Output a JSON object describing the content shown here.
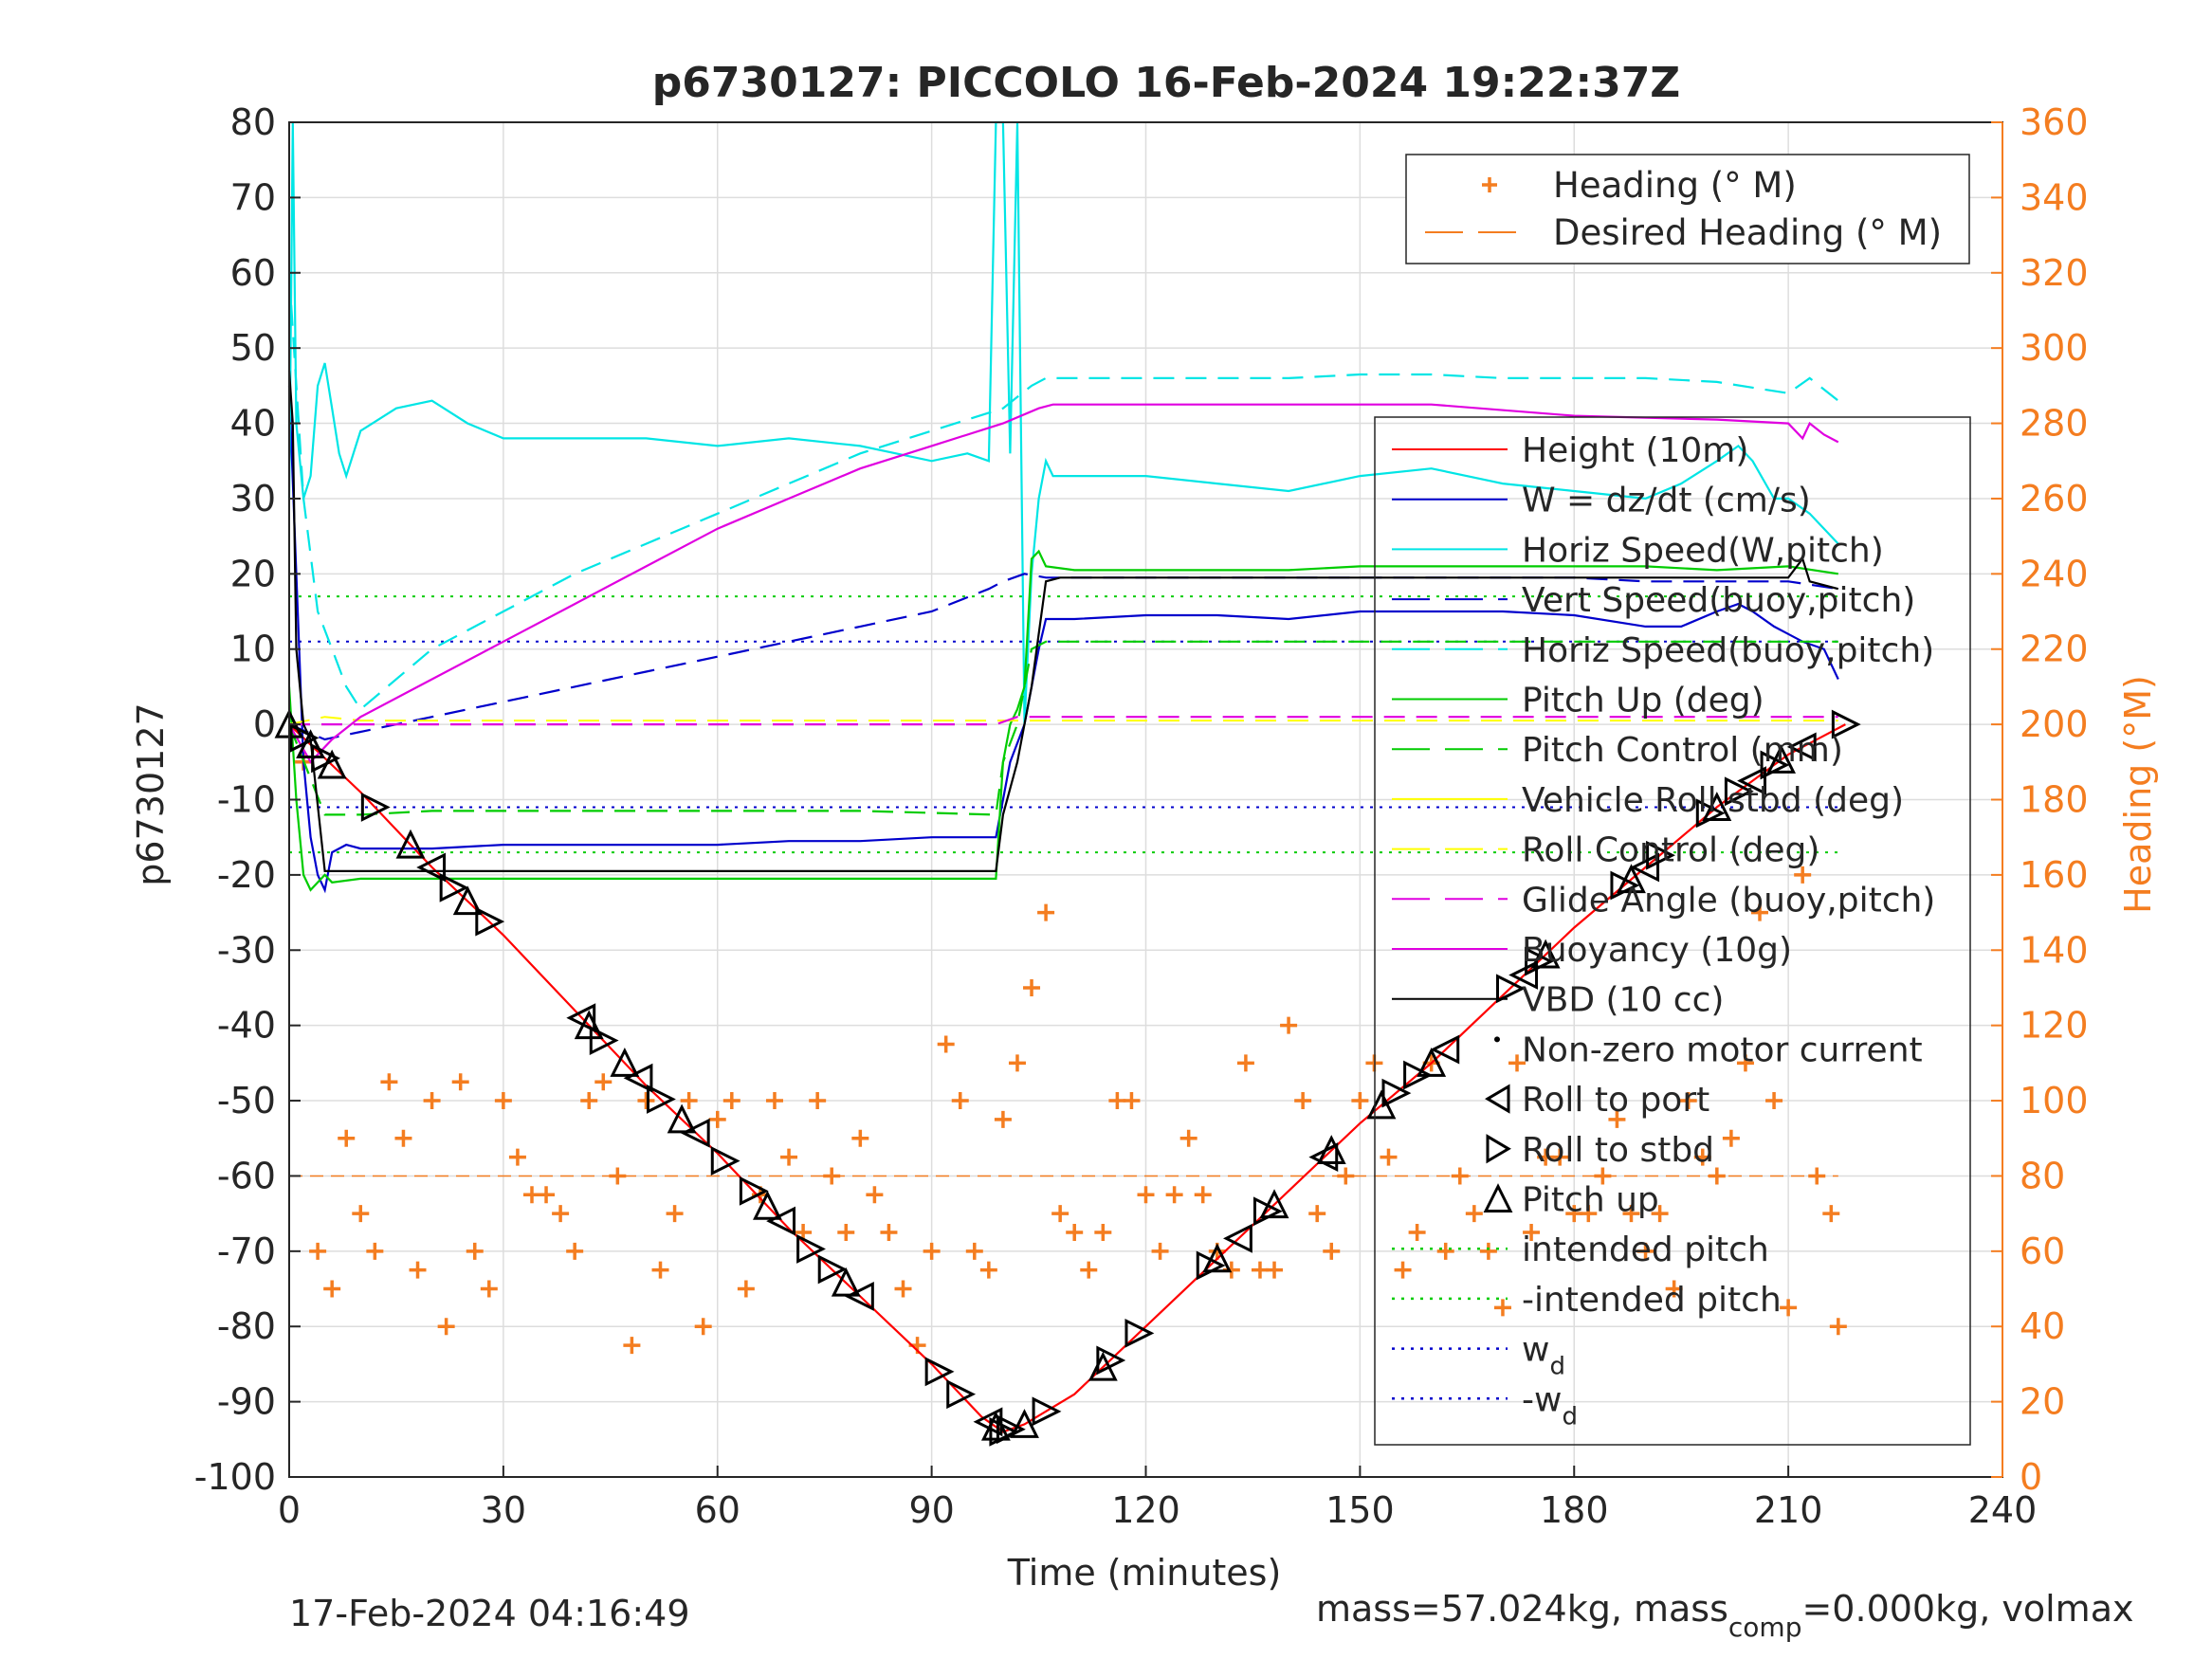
{
  "chart_data": {
    "type": "line",
    "title": "p6730127: PICCOLO 16-Feb-2024 19:22:37Z",
    "xlabel": "Time (minutes)",
    "ylabel_left": "p6730127",
    "ylabel_right": "Heading (°M)",
    "xlim": [
      0,
      240
    ],
    "ylim_left": [
      -100,
      80
    ],
    "ylim_right": [
      0,
      360
    ],
    "xticks": [
      0,
      30,
      60,
      90,
      120,
      150,
      180,
      210,
      240
    ],
    "yticks_left": [
      -100,
      -90,
      -80,
      -70,
      -60,
      -50,
      -40,
      -30,
      -20,
      -10,
      0,
      10,
      20,
      30,
      40,
      50,
      60,
      70,
      80
    ],
    "yticks_right": [
      0,
      20,
      40,
      60,
      80,
      100,
      120,
      140,
      160,
      180,
      200,
      220,
      240,
      260,
      280,
      300,
      320,
      340,
      360
    ],
    "grid": true,
    "footer_left": "17-Feb-2024 04:16:49",
    "footer_right_prefix": "mass=57.024kg, mass",
    "footer_right_sub": "comp",
    "footer_right_suffix": "=0.000kg, volmax",
    "legend_heading": [
      {
        "label": "Heading (° M)",
        "color": "#f47d20",
        "style": "plus"
      },
      {
        "label": "Desired Heading (° M)",
        "color": "#f47d20",
        "style": "dashed"
      }
    ],
    "legend_main": [
      {
        "label": "Height (10m)",
        "color": "#ff0000",
        "style": "solid"
      },
      {
        "label": "W = dz/dt (cm/s)",
        "color": "#0000cc",
        "style": "solid"
      },
      {
        "label": "Horiz Speed(W,pitch)",
        "color": "#00e5e5",
        "style": "solid"
      },
      {
        "label": "Vert Speed(buoy,pitch)",
        "color": "#0000cc",
        "style": "dashed"
      },
      {
        "label": "Horiz Speed(buoy,pitch)",
        "color": "#00e5e5",
        "style": "dashed"
      },
      {
        "label": "Pitch Up (deg)",
        "color": "#00cc00",
        "style": "solid"
      },
      {
        "label": "Pitch Control (mm)",
        "color": "#00cc00",
        "style": "dashed"
      },
      {
        "label": "Vehicle Roll stbd (deg)",
        "color": "#ffff00",
        "style": "solid"
      },
      {
        "label": "Roll Control (deg)",
        "color": "#ffff00",
        "style": "dashed"
      },
      {
        "label": "Glide Angle (buoy,pitch)",
        "color": "#e000e0",
        "style": "dashed"
      },
      {
        "label": "Buoyancy (10g)",
        "color": "#e000e0",
        "style": "solid"
      },
      {
        "label": "VBD (10 cc)",
        "color": "#000000",
        "style": "solid"
      },
      {
        "label": "Non-zero motor current",
        "color": "#000000",
        "style": "dot"
      },
      {
        "label": "Roll to port",
        "color": "#000000",
        "style": "tri-left"
      },
      {
        "label": "Roll to stbd",
        "color": "#000000",
        "style": "tri-right"
      },
      {
        "label": "Pitch up",
        "color": "#000000",
        "style": "tri-up"
      },
      {
        "label": "intended pitch",
        "color": "#00cc00",
        "style": "dotted"
      },
      {
        "label": "-intended pitch",
        "color": "#00cc00",
        "style": "dotted"
      },
      {
        "label": "w",
        "sub": "d",
        "color": "#0000cc",
        "style": "dotted"
      },
      {
        "label": "-w",
        "sub": "d",
        "color": "#0000cc",
        "style": "dotted"
      }
    ],
    "series": [
      {
        "name": "Height (10m)",
        "color": "#ff0000",
        "x": [
          0,
          10,
          20,
          30,
          40,
          50,
          60,
          70,
          80,
          90,
          97,
          100,
          103,
          110,
          120,
          130,
          140,
          150,
          160,
          170,
          180,
          190,
          200,
          210,
          218
        ],
        "y": [
          0,
          -9,
          -19,
          -28,
          -38,
          -48,
          -57,
          -67,
          -76,
          -85,
          -92,
          -94,
          -93,
          -89,
          -80,
          -71,
          -62,
          -53,
          -45,
          -36,
          -27,
          -19,
          -11,
          -4,
          0
        ]
      },
      {
        "name": "W = dz/dt (cm/s)",
        "color": "#0000cc",
        "x": [
          0,
          1,
          2,
          3,
          4,
          5,
          6,
          8,
          10,
          20,
          30,
          40,
          50,
          60,
          70,
          80,
          90,
          99,
          100,
          101,
          103,
          105,
          106,
          110,
          120,
          130,
          140,
          150,
          160,
          170,
          180,
          190,
          195,
          200,
          203,
          205,
          208,
          210,
          212,
          215,
          217
        ],
        "y": [
          45,
          20,
          -5,
          -15,
          -20,
          -22,
          -17,
          -16,
          -16.5,
          -16.5,
          -16,
          -16,
          -16,
          -16,
          -15.5,
          -15.5,
          -15,
          -15,
          -10,
          -5,
          0,
          10,
          14,
          14,
          14.5,
          14.5,
          14,
          15,
          15,
          15,
          14.5,
          13,
          13,
          15,
          16,
          15,
          13,
          12,
          11,
          10,
          6
        ]
      },
      {
        "name": "Horiz Speed(W,pitch)",
        "color": "#00e5e5",
        "x": [
          0,
          0.5,
          1,
          2,
          3,
          4,
          5,
          6,
          7,
          8,
          10,
          15,
          20,
          25,
          30,
          40,
          50,
          60,
          70,
          80,
          85,
          90,
          95,
          98,
          99,
          100,
          101,
          102,
          103,
          104,
          105,
          106,
          107,
          110,
          120,
          130,
          140,
          150,
          160,
          170,
          180,
          190,
          195,
          200,
          203,
          205,
          208,
          210,
          213,
          215,
          217
        ],
        "y": [
          30,
          80,
          40,
          30,
          33,
          45,
          48,
          42,
          36,
          33,
          39,
          42,
          43,
          40,
          38,
          38,
          38,
          37,
          38,
          37,
          36,
          35,
          36,
          35,
          80,
          80,
          36,
          80,
          0,
          20,
          30,
          35,
          33,
          33,
          33,
          32,
          31,
          33,
          34,
          32,
          31,
          30,
          32,
          35,
          37,
          35,
          30,
          30,
          28,
          26,
          24
        ]
      },
      {
        "name": "Vert Speed(buoy,pitch)",
        "color": "#0000cc",
        "dashed": true,
        "x": [
          0,
          5,
          10,
          20,
          30,
          40,
          50,
          60,
          70,
          80,
          90,
          98,
          100,
          103,
          106,
          110,
          120,
          130,
          140,
          150,
          160,
          170,
          180,
          190,
          200,
          210,
          217
        ],
        "y": [
          0,
          -2,
          -1,
          1,
          3,
          5,
          7,
          9,
          11,
          13,
          15,
          18,
          19,
          20,
          19.5,
          19.5,
          19.5,
          19.5,
          19.5,
          19.5,
          19.5,
          19.5,
          19.5,
          19,
          19,
          19,
          18
        ]
      },
      {
        "name": "Horiz Speed(buoy,pitch)",
        "color": "#00e5e5",
        "dashed": true,
        "x": [
          0,
          2,
          4,
          6,
          8,
          10,
          20,
          30,
          40,
          50,
          60,
          70,
          80,
          90,
          100,
          104,
          106,
          110,
          120,
          130,
          140,
          150,
          160,
          170,
          180,
          190,
          200,
          210,
          213,
          217
        ],
        "y": [
          60,
          30,
          15,
          10,
          5,
          2,
          10,
          15,
          20,
          24,
          28,
          32,
          36,
          39,
          42,
          45,
          46,
          46,
          46,
          46,
          46,
          46.5,
          46.5,
          46,
          46,
          46,
          45.5,
          44,
          46,
          43
        ]
      },
      {
        "name": "Pitch Up (deg)",
        "color": "#00cc00",
        "x": [
          0,
          1,
          2,
          3,
          4,
          5,
          6,
          10,
          20,
          30,
          40,
          50,
          60,
          70,
          80,
          90,
          99,
          100,
          101,
          102,
          103,
          104,
          105,
          106,
          110,
          120,
          130,
          140,
          150,
          160,
          170,
          180,
          190,
          200,
          210,
          217
        ],
        "y": [
          5,
          -10,
          -20,
          -22,
          -21,
          -20,
          -21,
          -20.5,
          -20.5,
          -20.5,
          -20.5,
          -20.5,
          -20.5,
          -20.5,
          -20.5,
          -20.5,
          -20.5,
          -5,
          0,
          2,
          5,
          22,
          23,
          21,
          20.5,
          20.5,
          20.5,
          20.5,
          21,
          21,
          21,
          21,
          21,
          20.5,
          21,
          20
        ]
      },
      {
        "name": "Pitch Control (mm)",
        "color": "#00cc00",
        "dashed": true,
        "x": [
          0,
          5,
          10,
          20,
          40,
          60,
          80,
          99,
          100,
          102,
          104,
          106,
          110,
          130,
          150,
          170,
          190,
          210,
          217
        ],
        "y": [
          0,
          -12,
          -12,
          -11.5,
          -11.5,
          -11.5,
          -11.5,
          -12,
          -5,
          0,
          10,
          11,
          11,
          11,
          11,
          11,
          11,
          11,
          11
        ]
      },
      {
        "name": "Roll Control (deg)",
        "color": "#ffff00",
        "dashed": true,
        "x": [
          0,
          5,
          10,
          20,
          40,
          60,
          80,
          90,
          100,
          110,
          130,
          150,
          170,
          190,
          210,
          217
        ],
        "y": [
          0,
          1,
          0.5,
          0.5,
          0.5,
          0.5,
          0.5,
          0.5,
          0.5,
          0.5,
          0.5,
          0.5,
          0.5,
          0.5,
          0.5,
          0.5
        ]
      },
      {
        "name": "Glide Angle (buoy,pitch)",
        "color": "#e000e0",
        "dashed": true,
        "x": [
          0,
          10,
          40,
          70,
          99,
          102,
          130,
          160,
          190,
          210,
          217
        ],
        "y": [
          0,
          0,
          0,
          0,
          0,
          1,
          1,
          1,
          1,
          1,
          1
        ]
      },
      {
        "name": "Buoyancy (10g)",
        "color": "#e000e0",
        "x": [
          0,
          3,
          6,
          10,
          20,
          30,
          40,
          50,
          60,
          70,
          80,
          90,
          100,
          105,
          107,
          120,
          140,
          160,
          180,
          200,
          210,
          212,
          213,
          215,
          217
        ],
        "y": [
          0,
          -5,
          -2,
          1,
          6,
          11,
          16,
          21,
          26,
          30,
          34,
          37,
          40,
          42,
          42.5,
          42.5,
          42.5,
          42.5,
          41,
          40.5,
          40,
          38,
          40,
          38.5,
          37.5
        ]
      },
      {
        "name": "VBD (10 cc)",
        "color": "#000000",
        "x": [
          0,
          0.5,
          1,
          2,
          3,
          5,
          10,
          20,
          40,
          60,
          80,
          99,
          100,
          102,
          104,
          106,
          108,
          120,
          150,
          180,
          210,
          212,
          213,
          217
        ],
        "y": [
          47,
          40,
          10,
          0,
          -2,
          -19.5,
          -19.5,
          -19.5,
          -19.5,
          -19.5,
          -19.5,
          -19.5,
          -12,
          -5,
          5,
          19,
          19.5,
          19.5,
          19.5,
          19.5,
          19.5,
          22,
          19,
          18
        ]
      }
    ],
    "heading": {
      "x": [
        2,
        4,
        6,
        8,
        10,
        12,
        14,
        16,
        18,
        20,
        22,
        24,
        26,
        28,
        30,
        32,
        34,
        36,
        38,
        40,
        42,
        44,
        46,
        48,
        50,
        52,
        54,
        56,
        58,
        60,
        62,
        64,
        66,
        68,
        70,
        72,
        74,
        76,
        78,
        80,
        82,
        84,
        86,
        88,
        90,
        92,
        94,
        96,
        98,
        100,
        102,
        104,
        106,
        108,
        110,
        112,
        114,
        116,
        118,
        120,
        122,
        124,
        126,
        128,
        130,
        132,
        134,
        136,
        138,
        140,
        142,
        144,
        146,
        148,
        150,
        152,
        154,
        156,
        158,
        160,
        162,
        164,
        166,
        168,
        170,
        172,
        174,
        176,
        178,
        180,
        182,
        184,
        186,
        188,
        190,
        192,
        194,
        196,
        198,
        200,
        202,
        204,
        206,
        208,
        210,
        212,
        214,
        216,
        217
      ],
      "y": [
        190,
        60,
        50,
        90,
        70,
        60,
        105,
        90,
        55,
        100,
        40,
        105,
        60,
        50,
        100,
        85,
        75,
        75,
        70,
        60,
        100,
        105,
        80,
        35,
        100,
        55,
        70,
        100,
        40,
        95,
        100,
        50,
        75,
        100,
        85,
        65,
        100,
        80,
        65,
        90,
        75,
        65,
        50,
        35,
        60,
        115,
        100,
        60,
        55,
        95,
        110,
        130,
        150,
        70,
        65,
        55,
        65,
        100,
        100,
        75,
        60,
        75,
        90,
        75,
        60,
        55,
        110,
        55,
        55,
        120,
        100,
        70,
        60,
        80,
        100,
        110,
        85,
        55,
        65,
        110,
        60,
        80,
        70,
        60,
        45,
        110,
        65,
        85,
        85,
        70,
        70,
        80,
        95,
        70,
        60,
        70,
        50,
        100,
        85,
        80,
        90,
        110,
        150,
        100,
        45,
        160,
        80,
        70,
        40
      ],
      "desired": 80
    },
    "lines_reference": {
      "intended_pitch": 17,
      "neg_intended_pitch": -17,
      "w_d": 11,
      "neg_w_d": -11
    },
    "markers": {
      "roll_port_x": [
        20,
        41,
        49,
        57,
        69,
        80,
        98,
        133,
        145,
        162,
        173,
        190,
        205,
        212
      ],
      "roll_stbd_x": [
        2,
        5,
        12,
        23,
        28,
        44,
        52,
        61,
        65,
        73,
        76,
        91,
        94,
        100,
        101,
        106,
        115,
        119,
        129,
        137,
        155,
        158,
        171,
        175,
        187,
        192,
        199,
        203,
        208,
        218
      ],
      "pitch_up_x": [
        0,
        3,
        6,
        17,
        25,
        42,
        47,
        55,
        67,
        78,
        99,
        103,
        114,
        130,
        138,
        146,
        153,
        160,
        176,
        188,
        200,
        209
      ]
    }
  }
}
